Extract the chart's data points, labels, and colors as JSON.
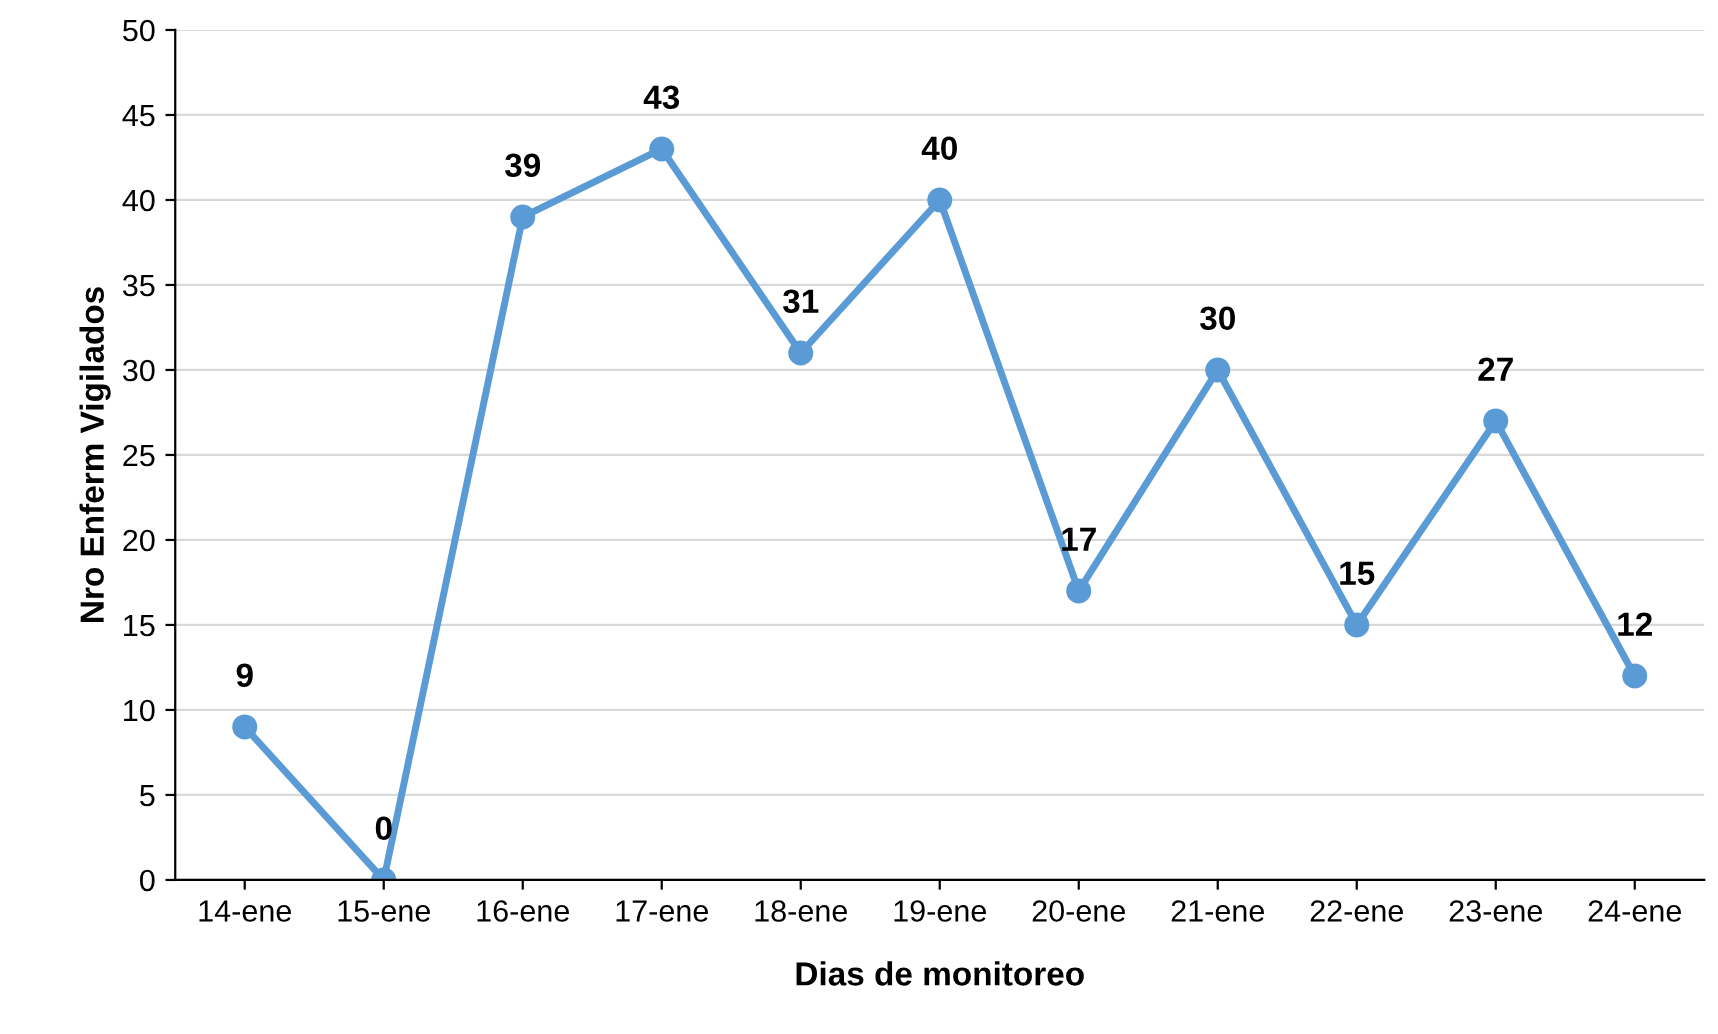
{
  "chart_data": {
    "type": "line",
    "xlabel": "Dias de monitoreo",
    "ylabel": "Nro Enferm Vigilados",
    "categories": [
      "14-ene",
      "15-ene",
      "16-ene",
      "17-ene",
      "18-ene",
      "19-ene",
      "20-ene",
      "21-ene",
      "22-ene",
      "23-ene",
      "24-ene"
    ],
    "series": [
      {
        "color": "#5b9bd5",
        "values": [
          9,
          0,
          39,
          43,
          31,
          40,
          17,
          30,
          15,
          27,
          12
        ]
      }
    ],
    "ylim": [
      0,
      50
    ],
    "yticks": [
      0,
      5,
      10,
      15,
      20,
      25,
      30,
      35,
      40,
      45,
      50
    ],
    "grid": "y",
    "marker": "circle",
    "line_style": "solid",
    "data_labels": true,
    "legend": false
  }
}
